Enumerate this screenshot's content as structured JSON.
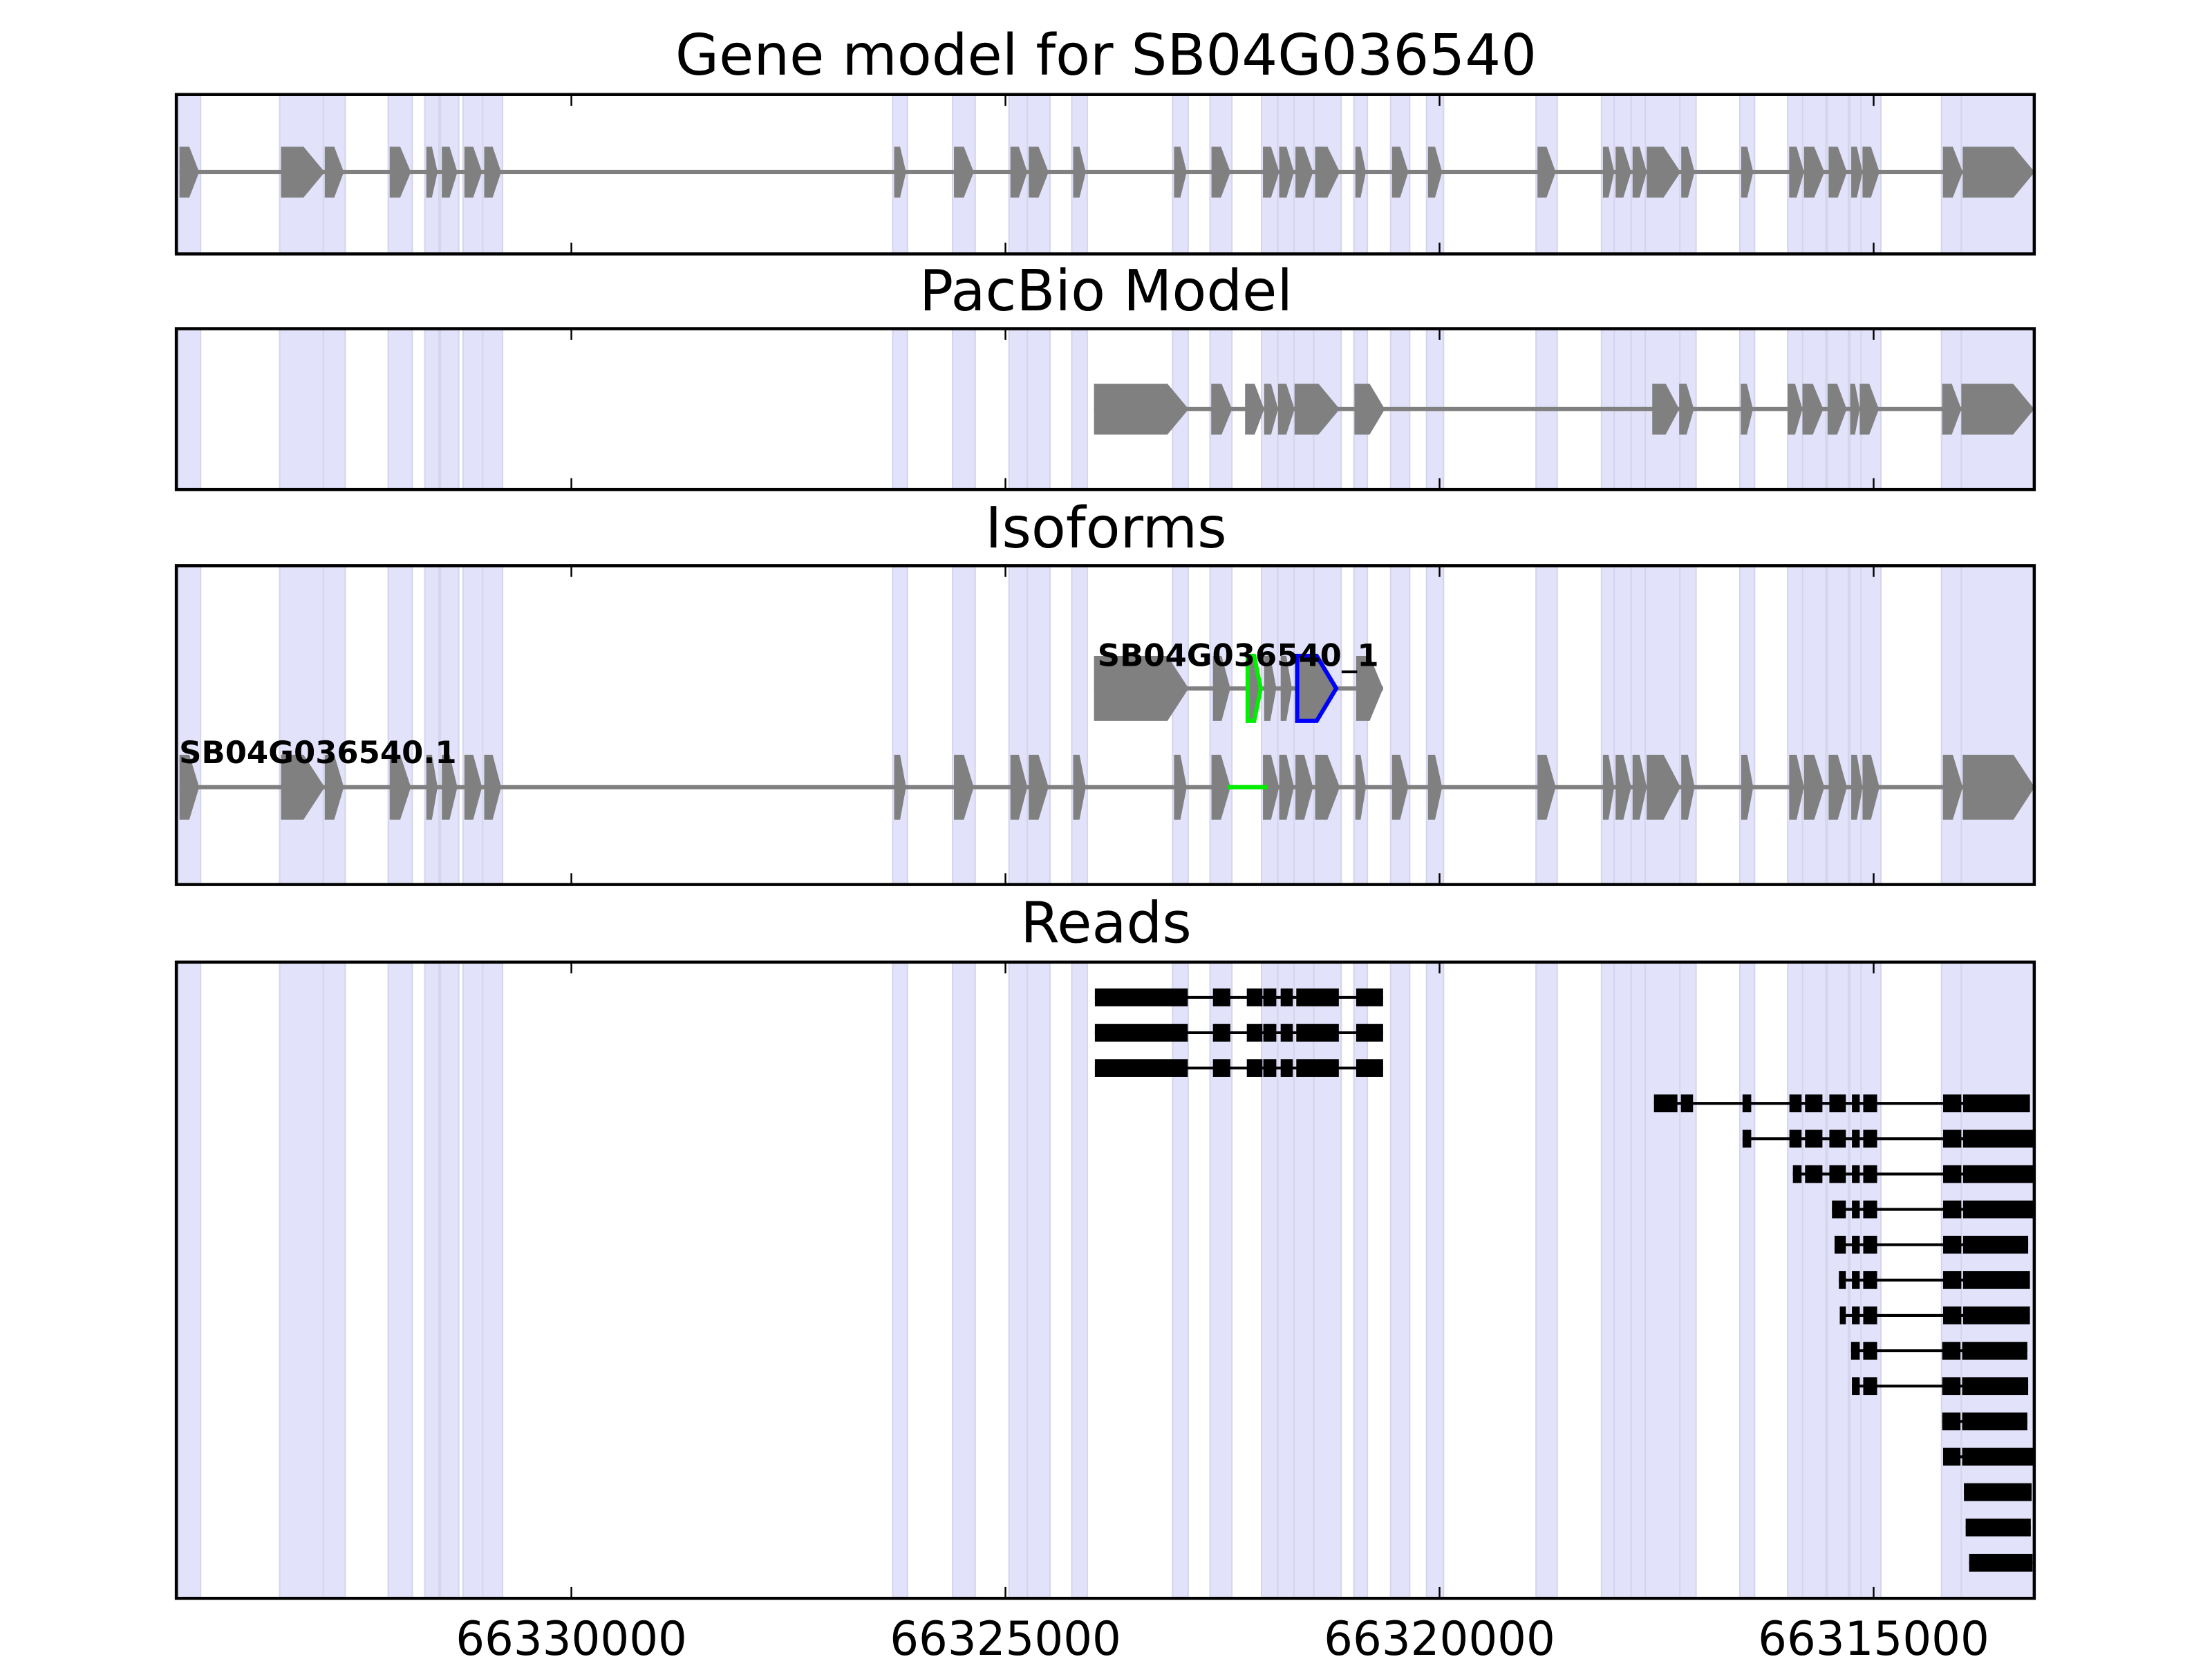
{
  "chart_data": {
    "type": "gene-track",
    "xlim": [
      66334550,
      66313150
    ],
    "xaxis_reversed": true,
    "xticks": [
      "66330000",
      "66325000",
      "66320000",
      "66315000"
    ],
    "xtick_values": [
      66330000,
      66325000,
      66320000,
      66315000
    ],
    "shading_color": "#e2e2fa",
    "exon_color": "#808080",
    "read_color": "#000000",
    "highlight_colors": {
      "green": "#00ee00",
      "blue": "#0000ff"
    },
    "panels": {
      "gene_model": {
        "title": "Gene model for SB04G036540",
        "exons": [
          [
            66334514,
            66334287
          ],
          [
            66333344,
            66332841
          ],
          [
            66332841,
            66332621
          ],
          [
            66332093,
            66331849
          ],
          [
            66331671,
            66331541
          ],
          [
            66331492,
            66331313
          ],
          [
            66331232,
            66331029
          ],
          [
            66331004,
            66330809
          ],
          [
            66326282,
            66326145
          ],
          [
            66325593,
            66325365
          ],
          [
            66324943,
            66324748
          ],
          [
            66324732,
            66324504
          ],
          [
            66324220,
            66324074
          ],
          [
            66323058,
            66322912
          ],
          [
            66322627,
            66322408
          ],
          [
            66322034,
            66321847
          ],
          [
            66321847,
            66321677
          ],
          [
            66321660,
            66321457
          ],
          [
            66321433,
            66321149
          ],
          [
            66320970,
            66320848
          ],
          [
            66320547,
            66320360
          ],
          [
            66320133,
            66319970
          ],
          [
            66318872,
            66318662
          ],
          [
            66318118,
            66317988
          ],
          [
            66317972,
            66317793
          ],
          [
            66317777,
            66317614
          ],
          [
            66317614,
            66317224
          ],
          [
            66317216,
            66317062
          ],
          [
            66316525,
            66316387
          ],
          [
            66315973,
            66315802
          ],
          [
            66315802,
            66315567
          ],
          [
            66315518,
            66315307
          ],
          [
            66315258,
            66315128
          ],
          [
            66315128,
            66314933
          ],
          [
            66314202,
            66313974
          ],
          [
            66313974,
            66313145
          ]
        ]
      },
      "pacbio": {
        "title": "PacBio Model",
        "exons": [
          [
            66323980,
            66322890
          ],
          [
            66322630,
            66322390
          ],
          [
            66322240,
            66322020
          ],
          [
            66322020,
            66321860
          ],
          [
            66321860,
            66321670
          ],
          [
            66321670,
            66321150
          ],
          [
            66320980,
            66320630
          ],
          [
            66317550,
            66317240
          ],
          [
            66317240,
            66317070
          ],
          [
            66316530,
            66316390
          ],
          [
            66315990,
            66315820
          ],
          [
            66315820,
            66315580
          ],
          [
            66315530,
            66315310
          ],
          [
            66315270,
            66315160
          ],
          [
            66315160,
            66314940
          ],
          [
            66314210,
            66313990
          ],
          [
            66313990,
            66313150
          ]
        ]
      },
      "isoforms": {
        "title": "Isoforms",
        "tracks": [
          {
            "label": "SB04G036540_1",
            "exons": [
              [
                66323980,
                66322890
              ],
              [
                66322610,
                66322410
              ],
              [
                66322210,
                66322060,
                "green"
              ],
              [
                66322020,
                66321880
              ],
              [
                66321830,
                66321700
              ],
              [
                66321640,
                66321190,
                "blue"
              ],
              [
                66320960,
                66320650
              ]
            ]
          },
          {
            "label": "SB04G036540.1",
            "exons": [
              [
                66334514,
                66334287
              ],
              [
                66333344,
                66332841
              ],
              [
                66332841,
                66332621
              ],
              [
                66332093,
                66331849
              ],
              [
                66331671,
                66331541
              ],
              [
                66331492,
                66331313
              ],
              [
                66331232,
                66331029
              ],
              [
                66331004,
                66330809
              ],
              [
                66326282,
                66326145
              ],
              [
                66325593,
                66325365
              ],
              [
                66324943,
                66324748
              ],
              [
                66324732,
                66324504
              ],
              [
                66324220,
                66324074
              ],
              [
                66323058,
                66322912
              ],
              [
                66322627,
                66322408
              ],
              [
                66322034,
                66321847
              ],
              [
                66321847,
                66321677
              ],
              [
                66321660,
                66321457
              ],
              [
                66321433,
                66321149
              ],
              [
                66320970,
                66320848
              ],
              [
                66320547,
                66320360
              ],
              [
                66320133,
                66319970
              ],
              [
                66318872,
                66318662
              ],
              [
                66318118,
                66317988
              ],
              [
                66317972,
                66317793
              ],
              [
                66317777,
                66317614
              ],
              [
                66317614,
                66317224
              ],
              [
                66317216,
                66317062
              ],
              [
                66316525,
                66316387
              ],
              [
                66315973,
                66315802
              ],
              [
                66315802,
                66315567
              ],
              [
                66315518,
                66315307
              ],
              [
                66315258,
                66315128
              ],
              [
                66315128,
                66314933
              ],
              [
                66314202,
                66313974
              ],
              [
                66313974,
                66313145
              ]
            ],
            "highlighted_introns": [
              [
                66322440,
                66321980,
                "green"
              ]
            ]
          }
        ]
      },
      "reads": {
        "title": "Reads",
        "rows": [
          [
            [
              66323970,
              66322900
            ],
            [
              66322610,
              66322410
            ],
            [
              66322220,
              66322040
            ],
            [
              66322030,
              66321880
            ],
            [
              66321830,
              66321690
            ],
            [
              66321650,
              66321160
            ],
            [
              66320960,
              66320650
            ]
          ],
          [
            [
              66323970,
              66322900
            ],
            [
              66322610,
              66322410
            ],
            [
              66322220,
              66322040
            ],
            [
              66322030,
              66321880
            ],
            [
              66321830,
              66321690
            ],
            [
              66321650,
              66321160
            ],
            [
              66320960,
              66320650
            ]
          ],
          [
            [
              66323970,
              66322900
            ],
            [
              66322610,
              66322410
            ],
            [
              66322220,
              66322040
            ],
            [
              66322030,
              66321880
            ],
            [
              66321830,
              66321690
            ],
            [
              66321650,
              66321160
            ],
            [
              66320960,
              66320650
            ]
          ],
          [
            [
              66317530,
              66317260
            ],
            [
              66317220,
              66317080
            ],
            [
              66316510,
              66316410
            ],
            [
              66315970,
              66315830
            ],
            [
              66315790,
              66315590
            ],
            [
              66315510,
              66315320
            ],
            [
              66315250,
              66315160
            ],
            [
              66315120,
              66314960
            ],
            [
              66314200,
              66313990
            ],
            [
              66313970,
              66313200
            ]
          ],
          [
            [
              66316510,
              66316410
            ],
            [
              66315970,
              66315830
            ],
            [
              66315790,
              66315590
            ],
            [
              66315510,
              66315320
            ],
            [
              66315250,
              66315160
            ],
            [
              66315120,
              66314960
            ],
            [
              66314200,
              66313990
            ],
            [
              66313970,
              66313150
            ]
          ],
          [
            [
              66315930,
              66315830
            ],
            [
              66315790,
              66315590
            ],
            [
              66315510,
              66315320
            ],
            [
              66315250,
              66315160
            ],
            [
              66315120,
              66314960
            ],
            [
              66314200,
              66313990
            ],
            [
              66313970,
              66313150
            ]
          ],
          [
            [
              66315480,
              66315320
            ],
            [
              66315250,
              66315160
            ],
            [
              66315120,
              66314960
            ],
            [
              66314200,
              66313990
            ],
            [
              66313970,
              66313150
            ]
          ],
          [
            [
              66315450,
              66315320
            ],
            [
              66315250,
              66315160
            ],
            [
              66315120,
              66314960
            ],
            [
              66314200,
              66313990
            ],
            [
              66313970,
              66313220
            ]
          ],
          [
            [
              66315400,
              66315320
            ],
            [
              66315250,
              66315160
            ],
            [
              66315120,
              66314960
            ],
            [
              66314200,
              66313990
            ],
            [
              66313970,
              66313200
            ]
          ],
          [
            [
              66315390,
              66315320
            ],
            [
              66315250,
              66315160
            ],
            [
              66315120,
              66314960
            ],
            [
              66314200,
              66313990
            ],
            [
              66313970,
              66313200
            ]
          ],
          [
            [
              66315260,
              66315160
            ],
            [
              66315120,
              66314960
            ],
            [
              66314210,
              66314000
            ],
            [
              66313980,
              66313230
            ]
          ],
          [
            [
              66315250,
              66315160
            ],
            [
              66315120,
              66314960
            ],
            [
              66314210,
              66314000
            ],
            [
              66313980,
              66313220
            ]
          ],
          [
            [
              66314210,
              66314000
            ],
            [
              66313980,
              66313230
            ]
          ],
          [
            [
              66314200,
              66314000
            ],
            [
              66313980,
              66313160
            ]
          ],
          [
            [
              66313960,
              66313180
            ]
          ],
          [
            [
              66313940,
              66313190
            ]
          ],
          [
            [
              66313900,
              66313170
            ]
          ]
        ]
      }
    }
  }
}
